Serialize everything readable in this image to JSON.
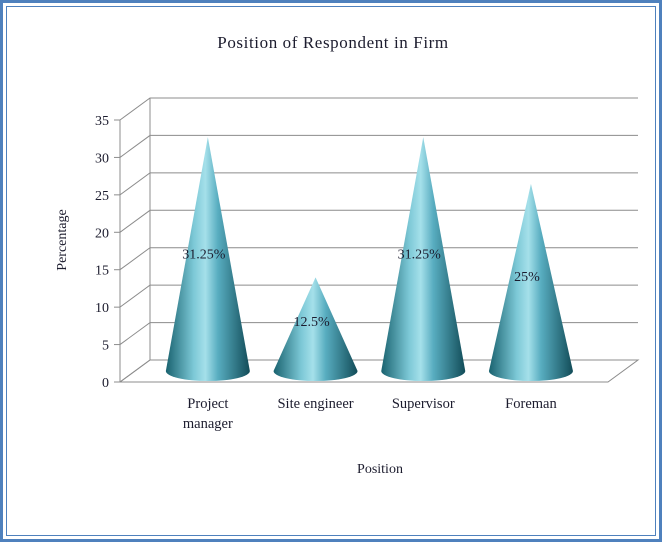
{
  "frame": {
    "background": "#ffffff",
    "border_color": "#4f81bd"
  },
  "chart_data": {
    "type": "bar",
    "subtype": "3d-cone",
    "title": "Position of Respondent in Firm",
    "xlabel": "Position",
    "ylabel": "Percentage",
    "categories": [
      "Project manager",
      "Site engineer",
      "Supervisor",
      "Foreman"
    ],
    "categories_display": [
      [
        "Project",
        "manager"
      ],
      [
        "Site engineer"
      ],
      [
        "Supervisor"
      ],
      [
        "Foreman"
      ]
    ],
    "values": [
      31.25,
      12.5,
      31.25,
      25
    ],
    "data_labels": [
      "31.25%",
      "12.5%",
      "31.25%",
      "25%"
    ],
    "unit": "%",
    "ylim": [
      0,
      35
    ],
    "yticks": [
      0,
      5,
      10,
      15,
      20,
      25,
      30,
      35
    ],
    "grid": true,
    "legend": "none",
    "colors": {
      "cone_gradient": [
        "#19626f",
        "#7cc8d6",
        "#a5e0ea",
        "#58adc0",
        "#124c58"
      ],
      "gridline": "#8c8c8c",
      "text": "#1c1c2e",
      "data_label": "#1d2d44",
      "floor_fill": "#ffffff"
    }
  }
}
